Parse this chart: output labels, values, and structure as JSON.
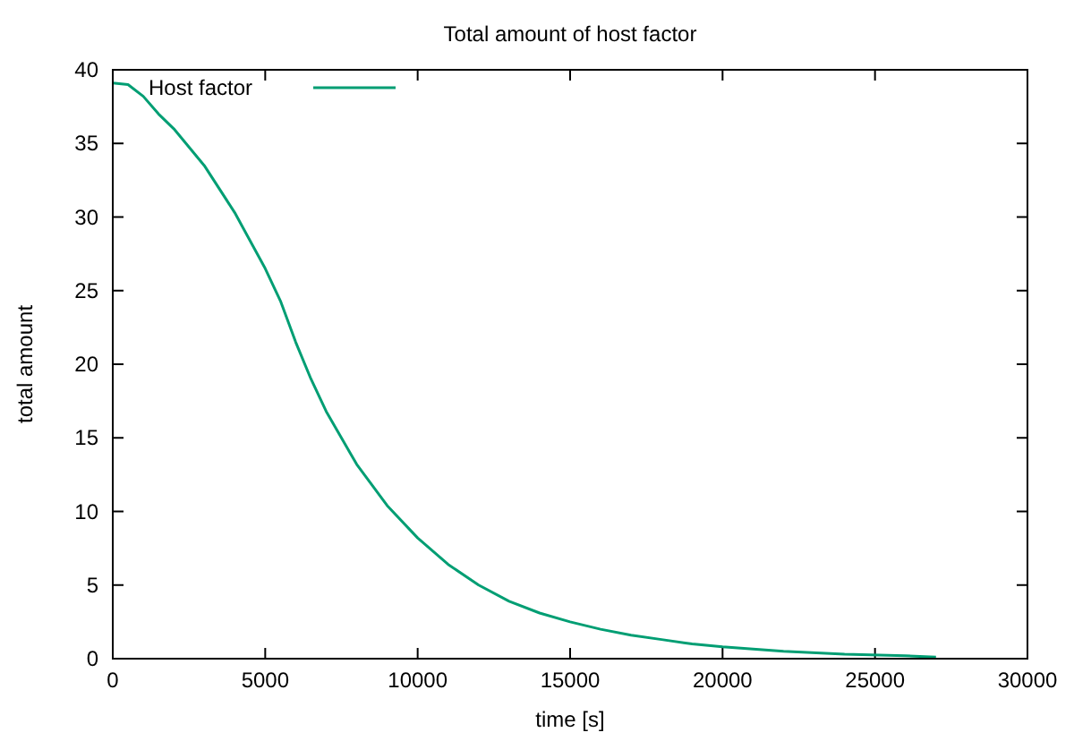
{
  "chart_data": {
    "type": "line",
    "title": "Total amount of host factor",
    "xlabel": "time [s]",
    "ylabel": "total amount",
    "x": [
      0,
      500,
      1000,
      1500,
      2000,
      3000,
      4000,
      5000,
      5500,
      6000,
      6500,
      7000,
      8000,
      9000,
      10000,
      11000,
      12000,
      13000,
      14000,
      15000,
      16000,
      17000,
      18000,
      19000,
      20000,
      22000,
      24000,
      26000,
      27000
    ],
    "series": [
      {
        "name": "Host factor",
        "color": "#009e73",
        "values": [
          39.1,
          39.0,
          38.2,
          37.0,
          36.0,
          33.5,
          30.3,
          26.5,
          24.3,
          21.5,
          19.0,
          16.8,
          13.2,
          10.4,
          8.2,
          6.4,
          5.0,
          3.9,
          3.1,
          2.5,
          2.0,
          1.6,
          1.3,
          1.0,
          0.8,
          0.5,
          0.3,
          0.2,
          0.1
        ]
      }
    ],
    "xlim": [
      0,
      30000
    ],
    "ylim": [
      0,
      40
    ],
    "xticks": [
      0,
      5000,
      10000,
      15000,
      20000,
      25000,
      30000
    ],
    "yticks": [
      0,
      5,
      10,
      15,
      20,
      25,
      30,
      35,
      40
    ],
    "legend": "top left",
    "grid": false,
    "marker": "none",
    "line_style": "solid"
  }
}
